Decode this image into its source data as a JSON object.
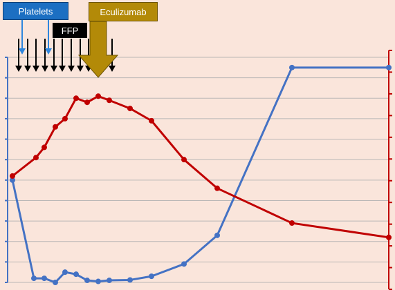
{
  "labels": {
    "platelets": "Platelets",
    "ffp": "FFP",
    "eculizumab": "Eculizumab"
  },
  "colors": {
    "background": "#fae5db",
    "grid": "#b9b6b6",
    "platelet_series": "#4472c4",
    "red_series": "#c00000",
    "platelets_box": "#1c6fc2",
    "ffp_box": "#000000",
    "eculizumab_box": "#b38a08",
    "platelet_arrow": "#2e86de",
    "ffp_arrow": "#000000",
    "eculizumab_arrow": "#b38a08"
  },
  "chart_data": {
    "type": "line",
    "title": "",
    "xlabel": "",
    "ylabel_left": "",
    "ylabel_right": "",
    "xlim": [
      0,
      30
    ],
    "ylim_left": [
      0,
      11
    ],
    "ylim_right": [
      0,
      11
    ],
    "grid": true,
    "left_ticks": 11,
    "right_ticks": 11,
    "series": [
      {
        "axis": "left",
        "points": [
          [
            0,
            5.0
          ],
          [
            1,
            0.2
          ],
          [
            2,
            0.2
          ],
          [
            2.6,
            0.0
          ],
          [
            3.3,
            0.5
          ],
          [
            4,
            0.4
          ],
          [
            4.6,
            0.1
          ],
          [
            5.3,
            0.05
          ],
          [
            6,
            0.1
          ],
          [
            7,
            0.12
          ],
          [
            8,
            0.3
          ],
          [
            10,
            0.9
          ],
          [
            12,
            2.3
          ],
          [
            16,
            10.5
          ],
          [
            22,
            10.5
          ]
        ]
      },
      {
        "axis": "right",
        "points": [
          [
            0,
            5.2
          ],
          [
            1.2,
            6.1
          ],
          [
            2,
            6.6
          ],
          [
            2.6,
            7.6
          ],
          [
            3.3,
            8.0
          ],
          [
            4,
            9.0
          ],
          [
            4.6,
            8.8
          ],
          [
            5.3,
            9.1
          ],
          [
            6,
            8.9
          ],
          [
            7.5,
            8.5
          ],
          [
            9,
            7.9
          ],
          [
            10.5,
            6.0
          ],
          [
            12,
            4.6
          ],
          [
            16,
            2.9
          ],
          [
            22,
            2.2
          ]
        ]
      }
    ],
    "markers": {
      "platelets_x": [
        0.6,
        2.2
      ],
      "ffp_x": [
        0.4,
        0.9,
        1.4,
        1.9,
        2.4,
        2.9,
        3.4,
        3.9,
        4.3,
        6.2
      ],
      "eculizumab_x": [
        5.0
      ]
    }
  }
}
